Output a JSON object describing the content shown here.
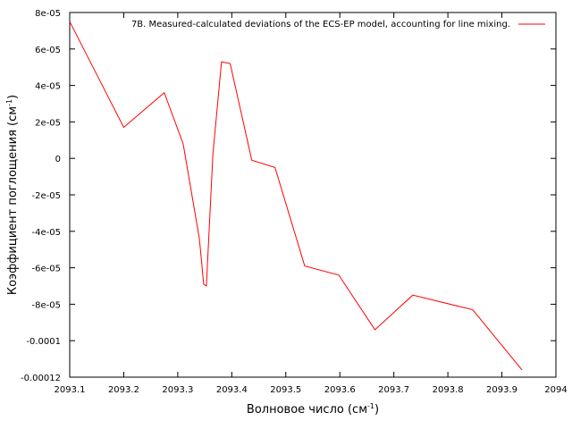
{
  "chart_data": {
    "type": "line",
    "legend_position": "top-right",
    "grid": false,
    "xlabel": "Волновое число (см",
    "xlabel_sup": "-1",
    "xlabel_tail": ")",
    "ylabel": "Коэффициент поглощения (см",
    "ylabel_sup": "-1",
    "ylabel_tail": ")",
    "xlim": [
      2093.1,
      2094
    ],
    "ylim": [
      -0.00012,
      8e-05
    ],
    "x_ticks": [
      2093.1,
      2093.2,
      2093.3,
      2093.4,
      2093.5,
      2093.6,
      2093.7,
      2093.8,
      2093.9,
      2094
    ],
    "x_tick_labels": [
      "2093.1",
      "2093.2",
      "2093.3",
      "2093.4",
      "2093.5",
      "2093.6",
      "2093.7",
      "2093.8",
      "2093.9",
      "2094"
    ],
    "y_ticks": [
      8e-05,
      6e-05,
      4e-05,
      2e-05,
      0,
      -2e-05,
      -4e-05,
      -6e-05,
      -8e-05,
      -0.0001,
      -0.00012
    ],
    "y_tick_labels": [
      "8e-05",
      "6e-05",
      "4e-05",
      "2e-05",
      "0",
      "-2e-05",
      "-4e-05",
      "-6e-05",
      "-8e-05",
      "-0.0001",
      "-0.00012"
    ],
    "series": [
      {
        "name": "7B. Measured-calculated deviations of the ECS-EP model, accounting for line mixing.",
        "color": "#ff0000",
        "x": [
          2093.1,
          2093.2,
          2093.275,
          2093.31,
          2093.34,
          2093.348,
          2093.353,
          2093.365,
          2093.381,
          2093.397,
          2093.437,
          2093.48,
          2093.535,
          2093.598,
          2093.665,
          2093.735,
          2093.846,
          2093.937
        ],
        "y": [
          7.5e-05,
          1.7e-05,
          3.6e-05,
          8e-06,
          -4.4e-05,
          -6.9e-05,
          -7e-05,
          2e-06,
          5.3e-05,
          5.2e-05,
          -1e-06,
          -5e-06,
          -5.9e-05,
          -6.4e-05,
          -9.4e-05,
          -7.5e-05,
          -8.3e-05,
          -0.000116
        ]
      }
    ]
  }
}
